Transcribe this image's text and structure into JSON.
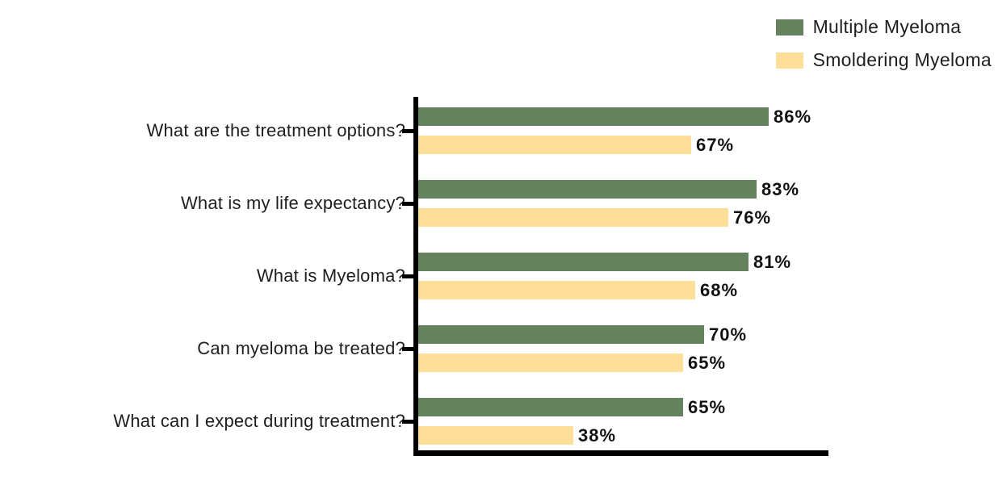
{
  "chart_data": {
    "type": "bar",
    "orientation": "horizontal",
    "title": "",
    "xlabel": "",
    "ylabel": "",
    "xlim": [
      0,
      100
    ],
    "grid": false,
    "legend_position": "top-right",
    "value_suffix": "%",
    "categories": [
      "What are the treatment options?",
      "What is my life expectancy?",
      "What is Myeloma?",
      "Can myeloma be treated?",
      "What can I expect during treatment?"
    ],
    "series": [
      {
        "name": "Multiple Myeloma",
        "color": "#64825E",
        "values": [
          86,
          83,
          81,
          70,
          65
        ]
      },
      {
        "name": "Smoldering Myeloma",
        "color": "#FDDF99",
        "values": [
          67,
          76,
          68,
          65,
          38
        ]
      }
    ],
    "colors": {
      "axis": "#000000",
      "text": "#1e1e1e",
      "background": "#ffffff"
    }
  }
}
